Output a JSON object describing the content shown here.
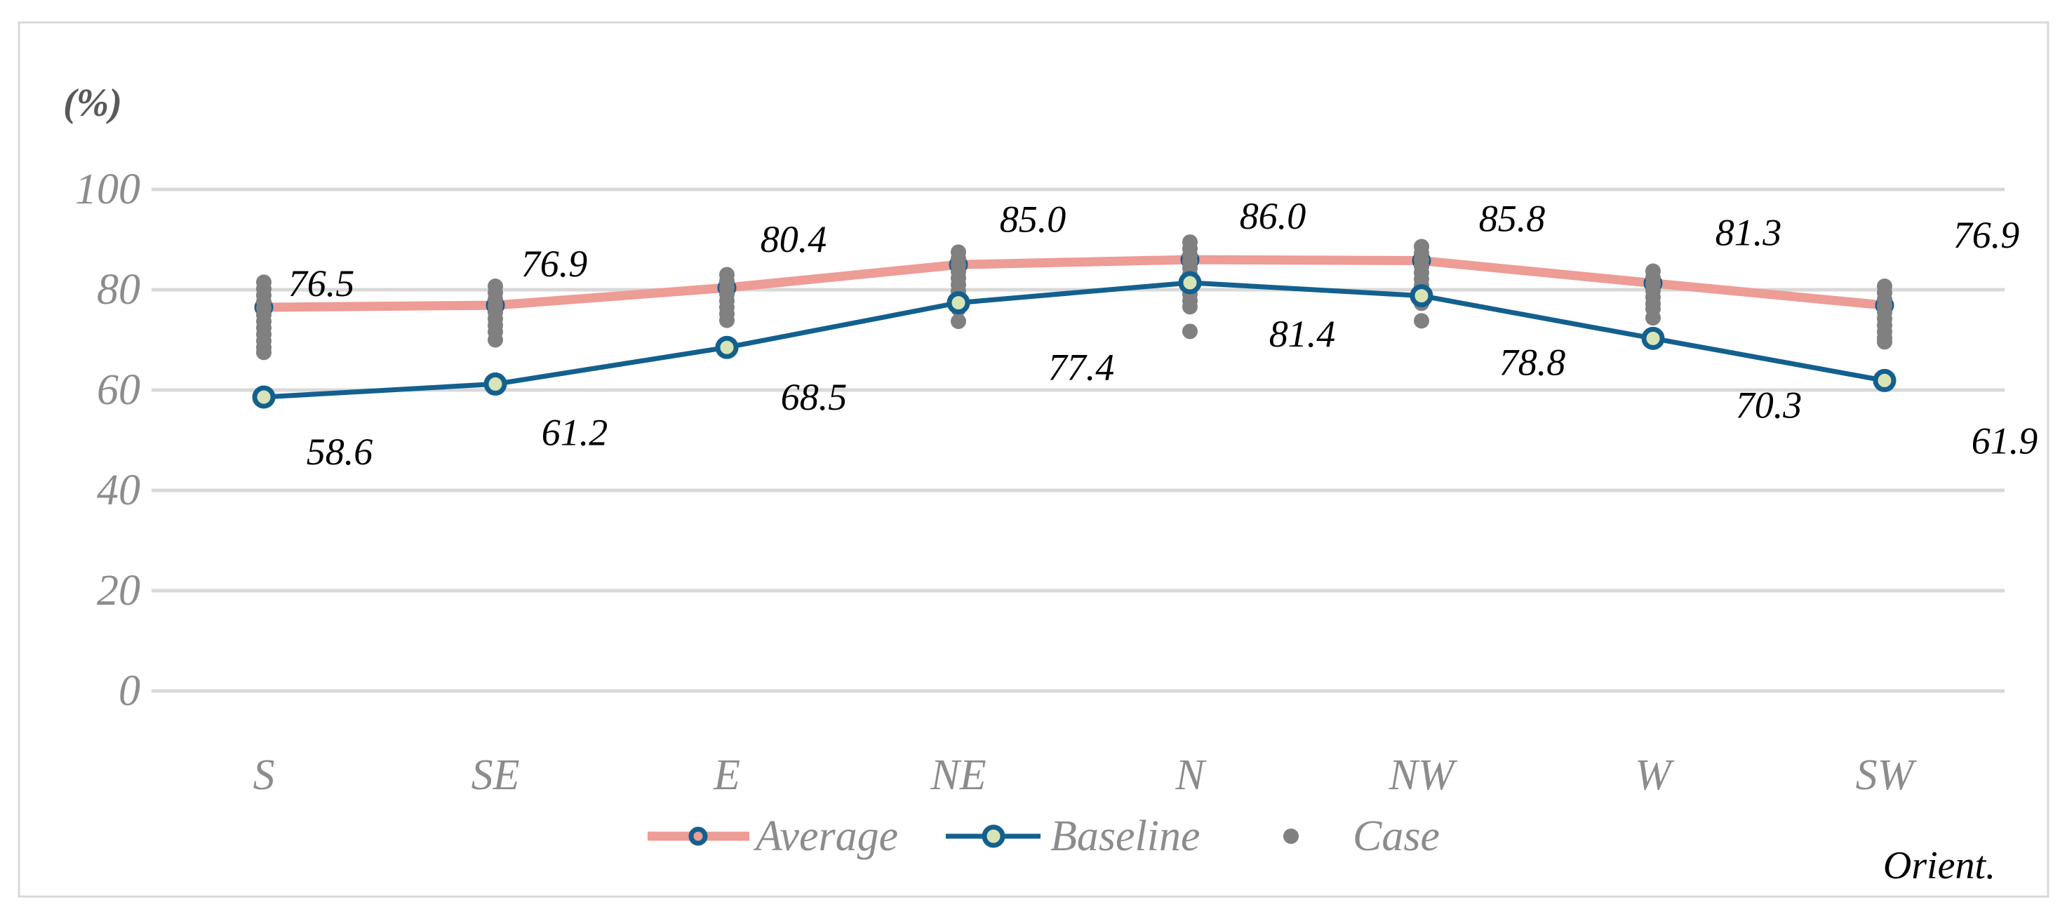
{
  "chart_data": {
    "type": "line",
    "title": "",
    "ylabel": "(%)",
    "xlabel": "Orient.",
    "categories": [
      "S",
      "SE",
      "E",
      "NE",
      "N",
      "NW",
      "W",
      "SW"
    ],
    "y_ticks": [
      "100",
      "80",
      "60",
      "40",
      "20",
      "0"
    ],
    "ylim": [
      0,
      100
    ],
    "grid": true,
    "legend_position": "bottom",
    "series": [
      {
        "name": "Average",
        "type": "line",
        "color": "#ED9C96",
        "marker": "open-circle-blue",
        "values": [
          76.5,
          76.9,
          80.4,
          85.0,
          86.0,
          85.8,
          81.3,
          76.9
        ],
        "labels": [
          "76.5",
          "76.9",
          "80.4",
          "85.0",
          "86.0",
          "85.8",
          "81.3",
          "76.9"
        ],
        "label_offsets": [
          [
            82,
            -34
          ],
          [
            84,
            -59
          ],
          [
            95,
            -69
          ],
          [
            106,
            -65
          ],
          [
            118,
            -62
          ],
          [
            129,
            -60
          ],
          [
            136,
            -72
          ],
          [
            145,
            -100
          ]
        ]
      },
      {
        "name": "Baseline",
        "type": "line",
        "color": "#13608F",
        "marker": "ring-green-center",
        "marker_fill": "#D8E4B5",
        "values": [
          58.6,
          61.2,
          68.5,
          77.4,
          81.4,
          78.8,
          70.3,
          61.9
        ],
        "labels": [
          "58.6",
          "61.2",
          "68.5",
          "77.4",
          "81.4",
          "78.8",
          "70.3",
          "61.9"
        ],
        "label_offsets": [
          [
            108,
            78
          ],
          [
            113,
            69
          ],
          [
            124,
            71
          ],
          [
            175,
            92
          ],
          [
            160,
            73
          ],
          [
            158,
            95
          ],
          [
            165,
            95
          ],
          [
            171,
            86
          ]
        ]
      },
      {
        "name": "Case",
        "type": "scatter",
        "color": "#808080",
        "points": {
          "S": [
            81.5,
            80.2,
            78.9,
            77.6,
            76.3,
            75.0,
            73.7,
            72.4,
            71.1,
            69.8,
            68.5,
            67.5
          ],
          "SE": [
            80.7,
            79.4,
            78.1,
            76.8,
            75.5,
            74.2,
            72.9,
            71.6,
            70.0
          ],
          "E": [
            83.0,
            81.7,
            80.4,
            79.1,
            77.8,
            76.5,
            75.2,
            73.9
          ],
          "NE": [
            87.5,
            86.2,
            84.9,
            83.6,
            82.3,
            81.0,
            79.7,
            78.4,
            77.1,
            76.2,
            73.7
          ],
          "N": [
            89.5,
            88.2,
            86.9,
            85.6,
            84.3,
            83.0,
            81.7,
            80.4,
            79.1,
            77.8,
            76.6,
            71.7
          ],
          "NW": [
            88.6,
            87.3,
            86.0,
            84.7,
            83.4,
            82.1,
            80.8,
            79.5,
            78.3,
            77.3,
            73.8
          ],
          "W": [
            83.7,
            82.4,
            81.1,
            79.8,
            78.5,
            77.2,
            76.2,
            74.4
          ],
          "SW": [
            80.7,
            79.4,
            78.1,
            76.8,
            75.5,
            74.2,
            72.9,
            71.6,
            70.4,
            69.6
          ]
        }
      }
    ],
    "legend": [
      {
        "label": "Average"
      },
      {
        "label": "Baseline"
      },
      {
        "label": "Case"
      }
    ],
    "colors": {
      "average_line": "#ED9C96",
      "baseline_line": "#13608F",
      "case_dot": "#808080",
      "marker_center_green": "#D8E4B5",
      "gridline": "#D9D9D9",
      "frame_border": "#D9D9D9",
      "axis_text": "#8C8C8C",
      "data_label_text": "#000000"
    }
  }
}
